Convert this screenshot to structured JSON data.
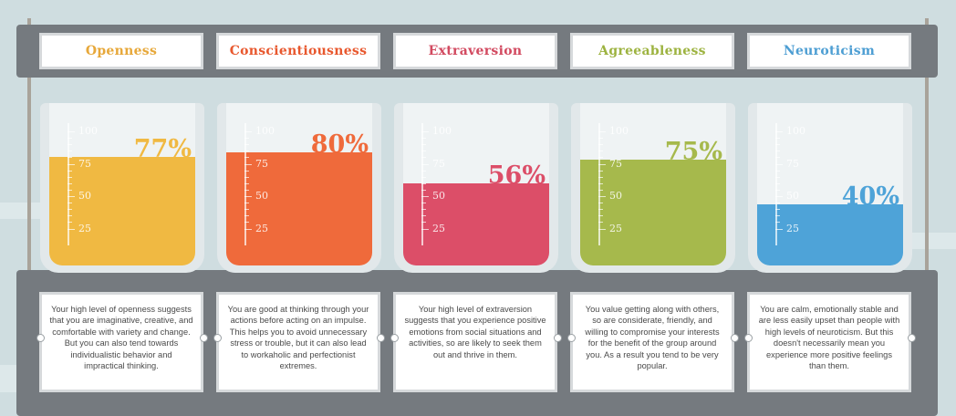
{
  "chart_data": {
    "type": "bar",
    "categories": [
      "Openness",
      "Conscientiousness",
      "Extraversion",
      "Agreeableness",
      "Neuroticism"
    ],
    "values": [
      77,
      80,
      56,
      75,
      40
    ],
    "value_labels": [
      "77%",
      "80%",
      "56%",
      "75%",
      "40%"
    ],
    "ylim": [
      0,
      100
    ],
    "ticks": [
      "100",
      "75",
      "50",
      "25"
    ],
    "colors": [
      "#f0b942",
      "#ef6a3b",
      "#dc4e68",
      "#a6b94c",
      "#4ea3d8"
    ],
    "label_colors": [
      "#e7a83a",
      "#e8582e",
      "#d24a60",
      "#9db340",
      "#4d9ed3"
    ]
  },
  "descriptions": [
    "Your high level of openness suggests that you are imaginative, creative, and comfortable with variety and change. But you can also tend towards individualistic behavior and impractical thinking.",
    "You are good at thinking through your actions before acting on an impulse. This helps you to avoid unnecessary stress or trouble, but it can also lead to workaholic and perfectionist extremes.",
    "Your high level of extraversion suggests that you experience positive emotions from social situations and activities, so are likely to seek them out and thrive in them.",
    "You value getting along with others, so are considerate, friendly, and willing to compromise your interests for the benefit of the group around you. As a result you tend to be very popular.",
    "You are calm, emotionally stable and are less easily upset than people with high levels of neuroticism. But this doesn't necessarily mean you experience more positive feelings than them."
  ]
}
